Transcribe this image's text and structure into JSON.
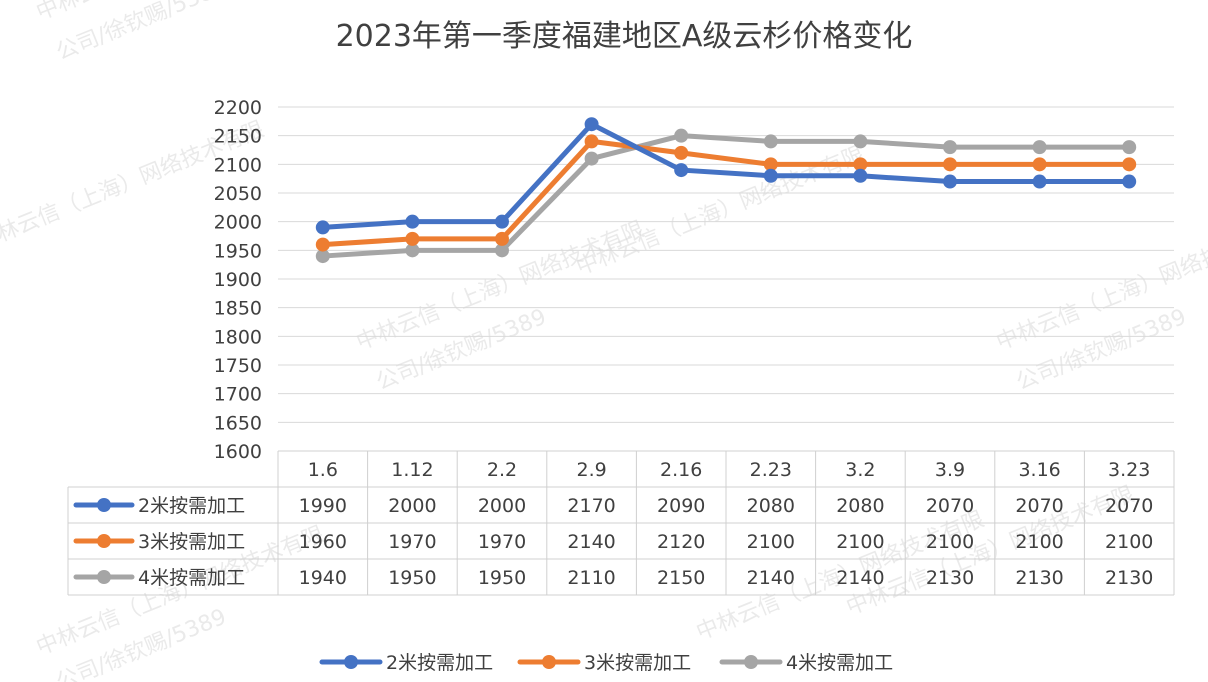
{
  "chart_data": {
    "type": "line",
    "title": "2023年第一季度福建地区A级云杉价格变化",
    "categories": [
      "1.6",
      "1.12",
      "2.2",
      "2.9",
      "2.16",
      "2.23",
      "3.2",
      "3.9",
      "3.16",
      "3.23"
    ],
    "ylim": [
      1600,
      2200
    ],
    "yticks": [
      1600,
      1650,
      1700,
      1750,
      1800,
      1850,
      1900,
      1950,
      2000,
      2050,
      2100,
      2150,
      2200
    ],
    "grid": true,
    "legend_position": "bottom",
    "data_table": true,
    "series": [
      {
        "name": "2米按需加工",
        "color": "#4472c4",
        "values": [
          1990,
          2000,
          2000,
          2170,
          2090,
          2080,
          2080,
          2070,
          2070,
          2070
        ]
      },
      {
        "name": "3米按需加工",
        "color": "#ed7d31",
        "values": [
          1960,
          1970,
          1970,
          2140,
          2120,
          2100,
          2100,
          2100,
          2100,
          2100
        ]
      },
      {
        "name": "4米按需加工",
        "color": "#a5a5a5",
        "values": [
          1940,
          1950,
          1950,
          2110,
          2150,
          2140,
          2140,
          2130,
          2130,
          2130
        ]
      }
    ]
  },
  "watermarks": [
    "中林云信（上海）网络技术有限",
    "公司/徐钦赐/5389"
  ]
}
